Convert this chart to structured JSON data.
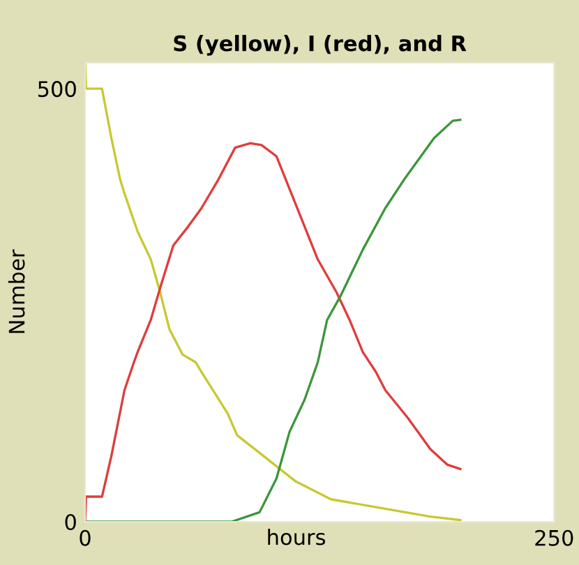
{
  "chart_data": {
    "type": "line",
    "title": "S (yellow), I (red), and R",
    "xlabel": "hours",
    "ylabel": "Number",
    "xlim": [
      0,
      250
    ],
    "ylim": [
      0,
      530
    ],
    "xticks": [
      0,
      250
    ],
    "yticks": [
      0,
      500
    ],
    "series": [
      {
        "color": "#c8c832",
        "x": [
          0,
          0.5,
          9,
          14,
          18.7,
          21,
          28,
          35,
          40,
          45,
          52,
          59,
          62,
          76,
          81,
          98,
          112,
          131,
          160,
          184,
          200
        ],
        "values": [
          530,
          500,
          500,
          443,
          395,
          379,
          335,
          303,
          265,
          222,
          193,
          184,
          173,
          125,
          100,
          71,
          47,
          26,
          15,
          6,
          2
        ]
      },
      {
        "color": "#e03c3c",
        "x": [
          0,
          0.5,
          9,
          14,
          21,
          26,
          28,
          35,
          40,
          47,
          55,
          62,
          71,
          80,
          88,
          94,
          102,
          107,
          114,
          124,
          134,
          141,
          148,
          155,
          160,
          172,
          184,
          193,
          200
        ],
        "values": [
          0,
          29,
          29,
          76,
          152,
          184,
          196,
          233,
          270,
          319,
          341,
          362,
          395,
          432,
          437,
          435,
          422,
          395,
          357,
          303,
          265,
          233,
          196,
          173,
          152,
          120,
          84,
          66,
          61
        ]
      },
      {
        "color": "#3c963c",
        "x": [
          0,
          78,
          93,
          102,
          109,
          117,
          124,
          129,
          136,
          148,
          160,
          170,
          177,
          186,
          196,
          200
        ],
        "values": [
          0,
          0,
          11,
          50,
          104,
          141,
          184,
          233,
          260,
          314,
          362,
          395,
          416,
          443,
          463,
          464
        ]
      }
    ]
  }
}
